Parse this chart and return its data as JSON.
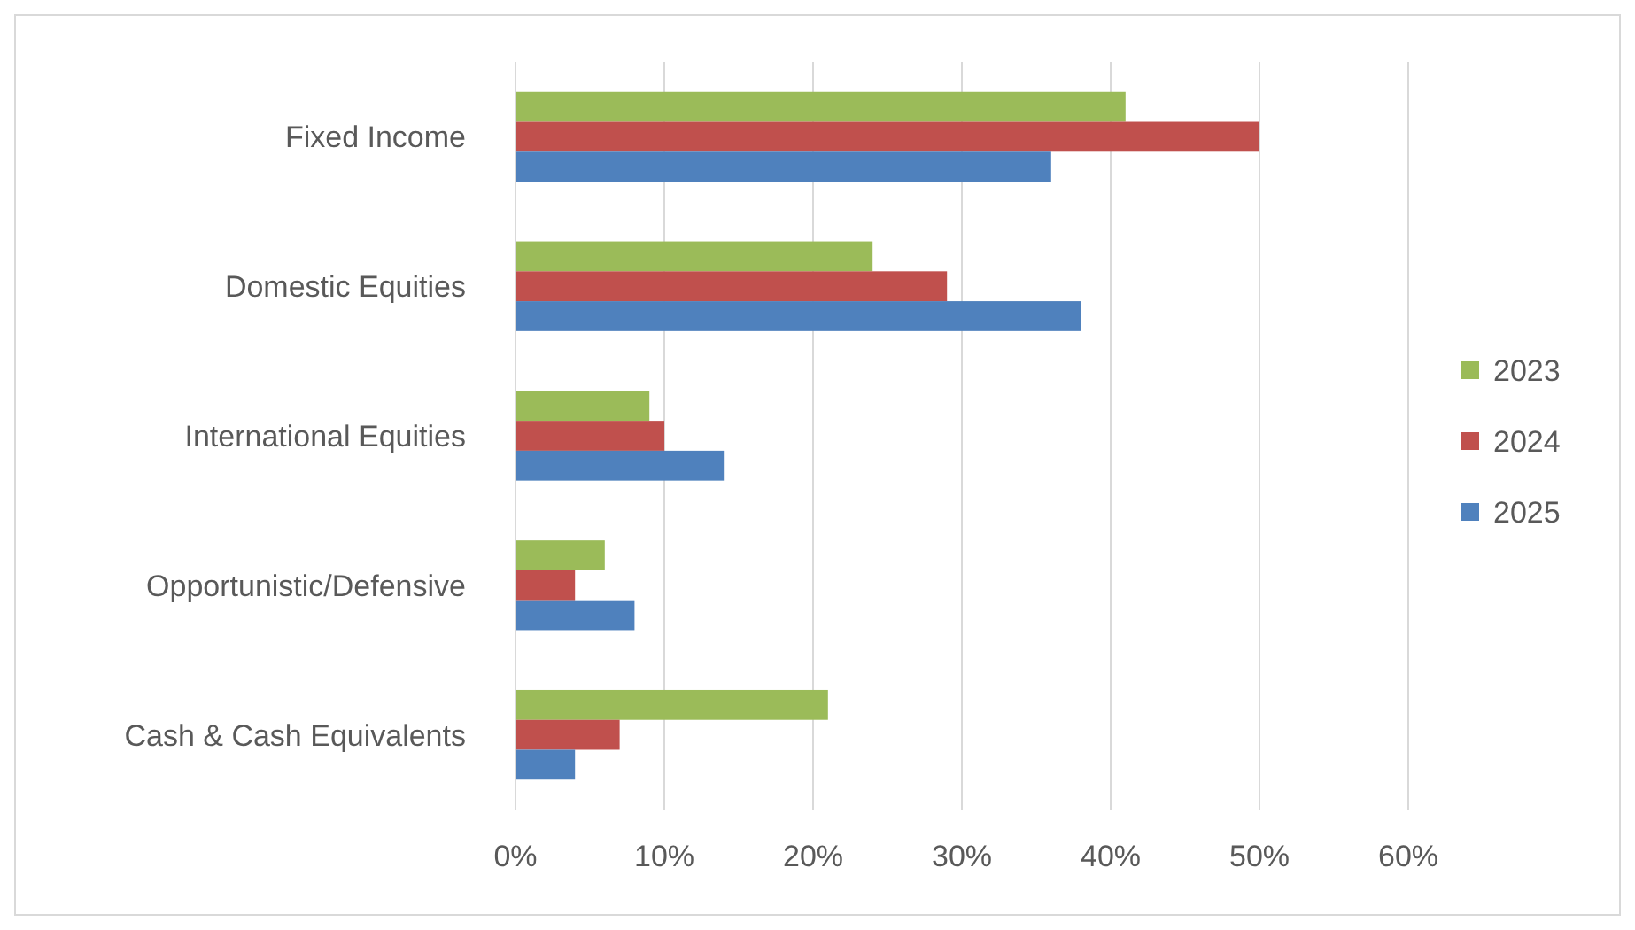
{
  "chart_data": {
    "type": "bar",
    "orientation": "horizontal",
    "categories": [
      "Fixed Income",
      "Domestic Equities",
      "International Equities",
      "Opportunistic/Defensive",
      "Cash & Cash Equivalents"
    ],
    "series": [
      {
        "name": "2023",
        "color": "#9bbb59",
        "values": [
          41,
          24,
          9,
          6,
          21
        ]
      },
      {
        "name": "2024",
        "color": "#c0504d",
        "values": [
          50,
          29,
          10,
          4,
          7
        ]
      },
      {
        "name": "2025",
        "color": "#4f81bd",
        "values": [
          36,
          38,
          14,
          8,
          4
        ]
      }
    ],
    "xlim": [
      0,
      60
    ],
    "xticks": [
      {
        "value": 0,
        "label": "0%"
      },
      {
        "value": 10,
        "label": "10%"
      },
      {
        "value": 20,
        "label": "20%"
      },
      {
        "value": 30,
        "label": "30%"
      },
      {
        "value": 40,
        "label": "40%"
      },
      {
        "value": 50,
        "label": "50%"
      },
      {
        "value": 60,
        "label": "60%"
      }
    ],
    "grid": "x",
    "legend": "right"
  }
}
